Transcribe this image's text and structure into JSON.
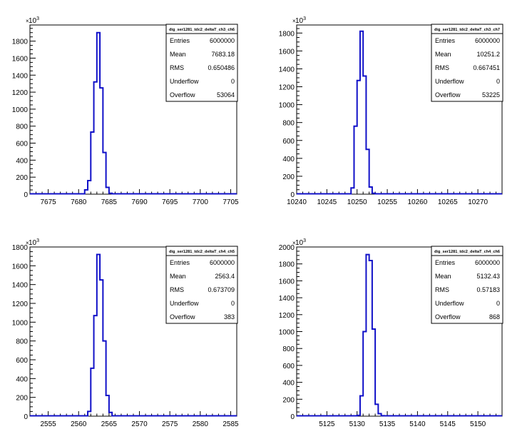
{
  "chart_data": [
    {
      "type": "histogram",
      "title": "dig_ser1281_tdc2_deltaT_ch3_ch6",
      "y_exponent_label": "10",
      "y_exponent_sup": "3",
      "xlim": [
        7672,
        7706
      ],
      "ylim": [
        0,
        1990
      ],
      "xticks": [
        "7675",
        "7680",
        "7685",
        "7690",
        "7695",
        "7700",
        "7705"
      ],
      "yticks": [
        "0",
        "200",
        "400",
        "600",
        "800",
        "1000",
        "1200",
        "1400",
        "1600",
        "1800"
      ],
      "bin_edges": [
        7681.0,
        7681.5,
        7682.0,
        7682.5,
        7683.0,
        7683.5,
        7684.0,
        7684.5,
        7685.0,
        7685.5
      ],
      "counts": [
        50,
        160,
        730,
        1320,
        1900,
        1250,
        490,
        80,
        10
      ],
      "stats": [
        {
          "label": "Entries",
          "value": "6000000"
        },
        {
          "label": "Mean",
          "value": "7683.18"
        },
        {
          "label": "RMS",
          "value": "0.650486"
        },
        {
          "label": "Underflow",
          "value": "0"
        },
        {
          "label": "Overflow",
          "value": "53064"
        }
      ]
    },
    {
      "type": "histogram",
      "title": "dig_ser1281_tdc2_deltaT_ch3_ch7",
      "y_exponent_label": "10",
      "y_exponent_sup": "3",
      "xlim": [
        10240,
        10274
      ],
      "ylim": [
        0,
        1890
      ],
      "xticks": [
        "10240",
        "10245",
        "10250",
        "10255",
        "10260",
        "10265",
        "10270"
      ],
      "yticks": [
        "0",
        "200",
        "400",
        "600",
        "800",
        "1000",
        "1200",
        "1400",
        "1600",
        "1800"
      ],
      "bin_edges": [
        10249.0,
        10249.5,
        10250.0,
        10250.5,
        10251.0,
        10251.5,
        10252.0,
        10252.5,
        10253.0
      ],
      "counts": [
        70,
        760,
        1270,
        1820,
        1320,
        500,
        80,
        10
      ],
      "stats": [
        {
          "label": "Entries",
          "value": "6000000"
        },
        {
          "label": "Mean",
          "value": "10251.2"
        },
        {
          "label": "RMS",
          "value": "0.667451"
        },
        {
          "label": "Underflow",
          "value": "0"
        },
        {
          "label": "Overflow",
          "value": "53225"
        }
      ]
    },
    {
      "type": "histogram",
      "title": "dig_ser1281_tdc2_deltaT_ch4_ch5",
      "y_exponent_label": "10",
      "y_exponent_sup": "3",
      "xlim": [
        2552,
        2586
      ],
      "ylim": [
        0,
        1800
      ],
      "xticks": [
        "2555",
        "2560",
        "2565",
        "2570",
        "2575",
        "2580",
        "2585"
      ],
      "yticks": [
        "0",
        "200",
        "400",
        "600",
        "800",
        "1000",
        "1200",
        "1400",
        "1600",
        "1800"
      ],
      "bin_edges": [
        2561.5,
        2562.0,
        2562.5,
        2563.0,
        2563.5,
        2564.0,
        2564.5,
        2565.0,
        2565.5
      ],
      "counts": [
        50,
        510,
        1070,
        1720,
        1450,
        800,
        220,
        40
      ],
      "stats": [
        {
          "label": "Entries",
          "value": "6000000"
        },
        {
          "label": "Mean",
          "value": "2563.4"
        },
        {
          "label": "RMS",
          "value": "0.673709"
        },
        {
          "label": "Underflow",
          "value": "0"
        },
        {
          "label": "Overflow",
          "value": "383"
        }
      ]
    },
    {
      "type": "histogram",
      "title": "dig_ser1281_tdc2_deltaT_ch4_ch6",
      "y_exponent_label": "10",
      "y_exponent_sup": "3",
      "xlim": [
        5120,
        5154
      ],
      "ylim": [
        0,
        2000
      ],
      "xticks": [
        "5125",
        "5130",
        "5135",
        "5140",
        "5145",
        "5150"
      ],
      "yticks": [
        "0",
        "200",
        "400",
        "600",
        "800",
        "1000",
        "1200",
        "1400",
        "1600",
        "1800",
        "2000"
      ],
      "bin_edges": [
        5130.0,
        5130.5,
        5131.0,
        5131.5,
        5132.0,
        5132.5,
        5133.0,
        5133.5,
        5134.0,
        5134.5
      ],
      "counts": [
        10,
        240,
        1000,
        1910,
        1840,
        1030,
        140,
        30,
        5
      ],
      "stats": [
        {
          "label": "Entries",
          "value": "6000000"
        },
        {
          "label": "Mean",
          "value": "5132.43"
        },
        {
          "label": "RMS",
          "value": "0.57183"
        },
        {
          "label": "Underflow",
          "value": "0"
        },
        {
          "label": "Overflow",
          "value": "868"
        }
      ]
    }
  ],
  "colors": {
    "histogram_line": "#1010c8",
    "axis": "#000000",
    "frame": "#000000",
    "background": "#ffffff"
  }
}
